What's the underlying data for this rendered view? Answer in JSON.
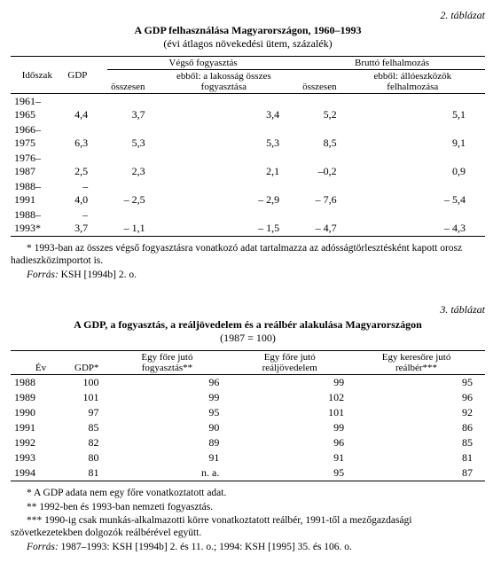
{
  "table2": {
    "label": "2. táblázat",
    "title": "A GDP felhasználása Magyarországon, 1960–1993",
    "subtitle": "(évi átlagos növekedési ütem, százalék)",
    "h_period": "Időszak",
    "h_gdp": "GDP",
    "h_cons": "Végső fogyasztás",
    "h_cons_total": "összesen",
    "h_cons_hh": "ebből: a lakosság összes fogyasztása",
    "h_inv": "Bruttó felhalmozás",
    "h_inv_total": "összesen",
    "h_inv_fixed": "ebből: állóeszközök felhalmozása",
    "rows": [
      {
        "p": "1961–1965",
        "gdp": "4,4",
        "ct": "3,7",
        "ch": "3,4",
        "it": "5,2",
        "if": "5,1"
      },
      {
        "p": "1966–1975",
        "gdp": "6,3",
        "ct": "5,3",
        "ch": "5,3",
        "it": "8,5",
        "if": "9,1"
      },
      {
        "p": "1976–1987",
        "gdp": "2,5",
        "ct": "2,3",
        "ch": "2,1",
        "it": "–0,2",
        "if": "0,9"
      },
      {
        "p": "1988–1991",
        "gdp": "– 4,0",
        "ct": "– 2,5",
        "ch": "– 2,9",
        "it": "– 7,6",
        "if": "– 5,4"
      },
      {
        "p": "1988–1993*",
        "gdp": "– 3,7",
        "ct": "– 1,1",
        "ch": "– 1,5",
        "it": "– 4,7",
        "if": "– 4,3"
      }
    ],
    "note_star": "* 1993-ban az összes végső fogyasztásra vonatkozó adat tartalmazza az adósságtörlesztésként kapott orosz hadieszközimportot is.",
    "source_lbl": "Forrás:",
    "source_txt": " KSH [1994b] 2. o."
  },
  "table3": {
    "label": "3. táblázat",
    "title": "A GDP, a fogyasztás, a reáljövedelem és a reálbér alakulása Magyarországon",
    "subtitle": "(1987 = 100)",
    "h_year": "Év",
    "h_gdp": "GDP*",
    "h_cons": "Egy főre jutó fogyasztás**",
    "h_inc": "Egy főre jutó reáljövedelem",
    "h_wage": "Egy keresőre jutó reálbér***",
    "rows": [
      {
        "y": "1988",
        "g": "100",
        "c": "96",
        "i": "99",
        "w": "95"
      },
      {
        "y": "1989",
        "g": "101",
        "c": "99",
        "i": "102",
        "w": "96"
      },
      {
        "y": "1990",
        "g": "97",
        "c": "95",
        "i": "101",
        "w": "92"
      },
      {
        "y": "1991",
        "g": "85",
        "c": "90",
        "i": "99",
        "w": "86"
      },
      {
        "y": "1992",
        "g": "82",
        "c": "89",
        "i": "96",
        "w": "85"
      },
      {
        "y": "1993",
        "g": "80",
        "c": "91",
        "i": "91",
        "w": "81"
      },
      {
        "y": "1994",
        "g": "81",
        "c": "n. a.",
        "i": "95",
        "w": "87"
      }
    ],
    "note1": "* A GDP adata nem egy főre vonatkoztatott adat.",
    "note2": "** 1992-ben és 1993-ban nemzeti fogyasztás.",
    "note3": "*** 1990-ig csak munkás-alkalmazotti körre vonatkoztatott reálbér, 1991-től a mezőgazdasági szövetkezetekben dolgozók reálbérével együtt.",
    "source_lbl": "Forrás:",
    "source_txt": " 1987–1993: KSH [1994b] 2. és 11. o.; 1994: KSH [1995] 35. és 106. o."
  }
}
